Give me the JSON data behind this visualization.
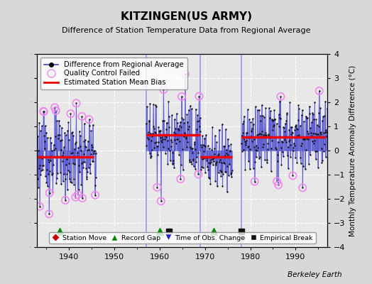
{
  "title": "KITZINGEN(US ARMY)",
  "subtitle": "Difference of Station Temperature Data from Regional Average",
  "ylabel_right": "Monthly Temperature Anomaly Difference (°C)",
  "credit": "Berkeley Earth",
  "xlim": [
    1933,
    1997
  ],
  "ylim": [
    -4,
    4
  ],
  "yticks": [
    -4,
    -3,
    -2,
    -1,
    0,
    1,
    2,
    3,
    4
  ],
  "xticks": [
    1940,
    1950,
    1960,
    1970,
    1980,
    1990
  ],
  "background_color": "#d8d8d8",
  "plot_bg_color": "#e8e8e8",
  "grid_color": "#ffffff",
  "line_color": "#4444cc",
  "dot_color": "#111111",
  "bias_color": "#ee0000",
  "qc_color": "#ee88ee",
  "bias_segments": [
    {
      "x_start": 1933.0,
      "x_end": 1945.5,
      "bias": -0.25
    },
    {
      "x_start": 1957.0,
      "x_end": 1969.0,
      "bias": 0.65
    },
    {
      "x_start": 1969.0,
      "x_end": 1976.0,
      "bias": -0.25
    },
    {
      "x_start": 1978.0,
      "x_end": 1996.5,
      "bias": 0.55
    }
  ],
  "vertical_lines": [
    1957.0,
    1969.0,
    1978.0
  ],
  "record_gaps": [
    1938,
    1960,
    1972
  ],
  "empirical_breaks": [
    1962,
    1978
  ],
  "obs_changes": [],
  "station_moves": [],
  "data_periods": [
    {
      "start": 1933,
      "end": 1945,
      "bias": -0.25,
      "spread": 0.85
    },
    {
      "start": 1957,
      "end": 1968,
      "bias": 0.65,
      "spread": 0.85
    },
    {
      "start": 1969,
      "end": 1975,
      "bias": -0.25,
      "spread": 0.65
    },
    {
      "start": 1978,
      "end": 1996,
      "bias": 0.55,
      "spread": 0.75
    }
  ]
}
